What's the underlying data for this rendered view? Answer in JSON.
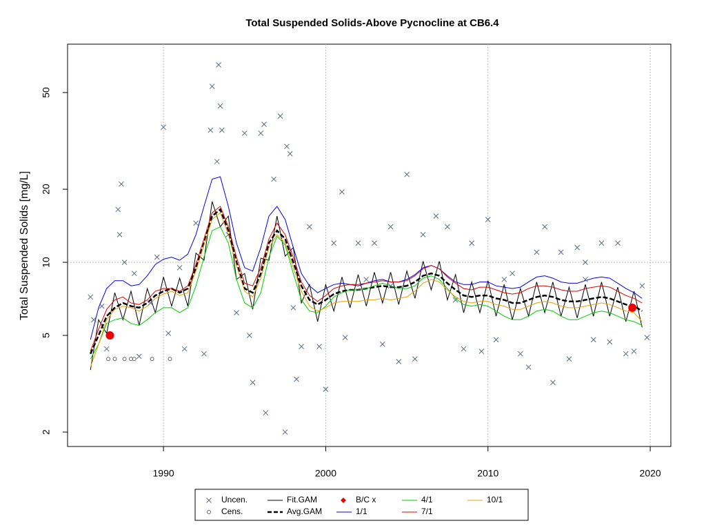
{
  "chart_data": {
    "type": "line",
    "title": "Total Suspended Solids-Above Pycnocline at CB6.4",
    "y_label": "Total Suspended Solids [mg/L]",
    "xlim": [
      1984.09,
      2021.27
    ],
    "xticks": [
      1990,
      2000,
      2010,
      2020
    ],
    "ylim": [
      1.744,
      79.1
    ],
    "yticks": [
      2,
      5,
      10,
      20,
      50
    ],
    "log_y": true,
    "grid": true,
    "hline": 10,
    "x": [
      1985.5,
      1986,
      1986.5,
      1987,
      1987.5,
      1988,
      1988.5,
      1989,
      1989.5,
      1990,
      1990.5,
      1991,
      1991.5,
      1992,
      1992.5,
      1993,
      1993.5,
      1994,
      1994.5,
      1995,
      1995.5,
      1996,
      1996.5,
      1997,
      1997.5,
      1998,
      1998.5,
      1999,
      1999.5,
      2000,
      2000.5,
      2001,
      2001.5,
      2002,
      2002.5,
      2003,
      2003.5,
      2004,
      2004.5,
      2005,
      2005.5,
      2006,
      2006.5,
      2007,
      2007.5,
      2008,
      2008.5,
      2009,
      2009.5,
      2010,
      2010.5,
      2011,
      2011.5,
      2012,
      2012.5,
      2013,
      2013.5,
      2014,
      2014.5,
      2015,
      2015.5,
      2016,
      2016.5,
      2017,
      2017.5,
      2018,
      2018.5,
      2019,
      2019.5
    ],
    "series": [
      {
        "name": "Uncen.",
        "kind": "scatter",
        "marker": "x",
        "color": "#5a6a80",
        "x": [
          1985.5,
          1985.7,
          1986.2,
          1986.5,
          1987.2,
          1987.4,
          1987.3,
          1987.6,
          1988.2,
          1988.5,
          1989.2,
          1989.6,
          1990,
          1990.3,
          1991,
          1991.3,
          1992,
          1992.5,
          1992.9,
          1993,
          1993.3,
          1993.4,
          1993.5,
          1993.6,
          1994,
          1994.5,
          1995,
          1995.3,
          1995.5,
          1996,
          1996.2,
          1996.3,
          1996.8,
          1997.2,
          1997.5,
          1997.6,
          1997.8,
          1998,
          1998.2,
          1998.5,
          1999,
          1999.6,
          2000,
          2000.5,
          2001,
          2001.2,
          2002,
          2003,
          2003.5,
          2004,
          2004.5,
          2005,
          2005.5,
          2006,
          2006.8,
          2007.5,
          2008.5,
          2009,
          2009.6,
          2010,
          2010.5,
          2011,
          2012,
          2012.5,
          2013,
          2013.5,
          2014,
          2014.5,
          2015,
          2015.5,
          2016,
          2016.5,
          2017,
          2017.5,
          2018,
          2018.5,
          2019,
          2019.5,
          2019.8,
          2002.5,
          2008,
          2011.5,
          2016,
          2004
        ],
        "values": [
          7.2,
          5.8,
          6.6,
          4.4,
          16.5,
          21,
          13,
          10,
          9,
          4.1,
          6.8,
          10.5,
          36,
          5.1,
          9.5,
          4.4,
          14.5,
          4.2,
          35,
          53,
          26,
          65,
          44,
          35,
          13,
          6.2,
          34,
          5,
          3.2,
          34,
          37,
          2.4,
          22,
          40,
          2.0,
          30,
          28,
          6.5,
          3.3,
          4.5,
          14,
          4.5,
          3.0,
          12,
          19.5,
          4.9,
          12,
          12,
          4.6,
          14,
          3.9,
          23,
          4,
          13,
          15.5,
          14,
          4.4,
          12,
          4.3,
          15,
          4.8,
          8.5,
          4.2,
          3.7,
          11,
          14,
          3.2,
          11,
          4,
          11.5,
          10,
          4.8,
          12,
          4.7,
          12,
          4.2,
          4.3,
          8,
          4.9,
          8.5,
          7,
          9,
          8.5,
          8
        ]
      },
      {
        "name": "Cens.",
        "kind": "scatter",
        "marker": "o",
        "color": "#666666",
        "x": [
          1986.6,
          1987,
          1987.6,
          1988,
          1988.2,
          1989.3,
          1990.4
        ],
        "values": [
          4,
          4,
          4,
          4,
          4,
          4,
          4
        ]
      },
      {
        "name": "Fit.GAM",
        "kind": "line",
        "color": "#000000",
        "width": 1,
        "values": [
          3.6,
          5.8,
          5.1,
          7.5,
          5.8,
          7.6,
          5.5,
          7.8,
          6.2,
          8.7,
          6.6,
          8.6,
          6.6,
          10.9,
          10.2,
          17.8,
          14,
          15.5,
          8.5,
          9,
          6.4,
          10.4,
          10.2,
          15.5,
          10.6,
          11.5,
          6.8,
          8.1,
          5.7,
          8.1,
          6.3,
          8.7,
          6.5,
          8.9,
          6.6,
          9.1,
          6.8,
          9.1,
          6.7,
          9.2,
          7.1,
          10.1,
          7.7,
          10.1,
          7.0,
          8.9,
          6.2,
          8.3,
          6.2,
          8.4,
          6.0,
          8.1,
          5.8,
          7.8,
          6.0,
          8.3,
          6.2,
          8.3,
          6.0,
          7.9,
          5.9,
          8.1,
          6.0,
          8.3,
          6.0,
          7.9,
          5.7,
          7.6,
          5.4
        ]
      },
      {
        "name": "Avg.GAM",
        "kind": "line",
        "color": "#000000",
        "width": 2.5,
        "dash": true,
        "values": [
          4.2,
          5.0,
          6.0,
          6.5,
          6.8,
          6.6,
          6.5,
          6.8,
          7.3,
          7.6,
          7.8,
          7.5,
          7.8,
          9.5,
          12,
          15.5,
          16.5,
          13.5,
          10,
          7.8,
          7.5,
          9,
          12,
          13.5,
          12.5,
          10,
          8,
          7,
          6.7,
          7,
          7.4,
          7.6,
          7.7,
          7.7,
          7.8,
          7.9,
          8,
          7.9,
          7.9,
          8.0,
          8.3,
          8.8,
          9.0,
          8.8,
          8.2,
          7.7,
          7.3,
          7.2,
          7.3,
          7.3,
          7.1,
          7.0,
          6.8,
          6.8,
          7.0,
          7.2,
          7.3,
          7.2,
          7.0,
          6.9,
          6.9,
          7.0,
          7.1,
          7.2,
          7.1,
          6.9,
          6.7,
          6.6,
          6.3
        ]
      },
      {
        "name": "B/C x",
        "kind": "scatter",
        "marker": "dot",
        "color": "#ee0000",
        "x": [
          1986.7,
          2018.9
        ],
        "values": [
          5.0,
          6.5
        ]
      },
      {
        "name": "1/1",
        "kind": "line",
        "color": "#0000ee",
        "width": 1,
        "values": [
          4.8,
          6.5,
          7.8,
          8.4,
          8.4,
          8.0,
          8.1,
          8.8,
          9.8,
          10.3,
          10.5,
          10.2,
          10.8,
          13,
          17,
          22,
          22.5,
          17,
          12,
          9.5,
          9.2,
          11.5,
          15.5,
          17,
          15,
          11.5,
          9,
          8,
          7.5,
          7.8,
          8.1,
          8.2,
          8.1,
          8.0,
          8.2,
          8.4,
          8.5,
          8.3,
          8.3,
          8.5,
          8.9,
          9.5,
          9.7,
          9.4,
          8.8,
          8.3,
          8.1,
          8.1,
          8.3,
          8.3,
          8.0,
          7.9,
          7.8,
          7.9,
          8.3,
          8.7,
          8.8,
          8.6,
          8.3,
          8.2,
          8.2,
          8.4,
          8.6,
          8.7,
          8.6,
          8.2,
          7.8,
          7.5,
          7.1
        ]
      },
      {
        "name": "4/1",
        "kind": "line",
        "color": "#00cc00",
        "width": 1,
        "values": [
          4.0,
          4.6,
          5.6,
          5.8,
          5.9,
          5.6,
          5.5,
          5.8,
          6.2,
          6.5,
          6.5,
          6.2,
          6.5,
          8,
          10.5,
          13.5,
          14,
          12,
          8.5,
          6.8,
          6.5,
          7.5,
          10.5,
          12.8,
          11.8,
          9,
          7,
          6.3,
          6.2,
          6.6,
          7.2,
          7.5,
          7.7,
          7.7,
          7.8,
          8.0,
          8.2,
          8.0,
          7.8,
          7.8,
          8.0,
          8.6,
          8.8,
          8.5,
          7.8,
          7.1,
          6.7,
          6.6,
          6.7,
          6.6,
          6.3,
          6.0,
          5.8,
          5.8,
          6.0,
          6.3,
          6.4,
          6.3,
          6.0,
          5.8,
          5.8,
          6.0,
          6.2,
          6.3,
          6.2,
          6.0,
          5.8,
          5.7,
          5.5
        ]
      },
      {
        "name": "7/1",
        "kind": "line",
        "color": "#dd0000",
        "width": 1,
        "values": [
          4.3,
          5.3,
          6.4,
          7.0,
          7.2,
          6.8,
          6.7,
          7.0,
          7.6,
          7.8,
          7.8,
          7.6,
          8.0,
          9.8,
          12.5,
          16,
          17,
          14,
          10.5,
          8.2,
          8.0,
          9.5,
          12.5,
          14.5,
          13,
          10.5,
          8.3,
          7.3,
          6.9,
          7.3,
          7.8,
          8.0,
          8.1,
          8.1,
          8.2,
          8.3,
          8.4,
          8.3,
          8.3,
          8.4,
          8.8,
          9.4,
          9.7,
          9.4,
          8.7,
          8.2,
          7.8,
          7.7,
          7.9,
          7.9,
          7.7,
          7.5,
          7.4,
          7.5,
          7.8,
          8.0,
          8.0,
          7.9,
          7.7,
          7.6,
          7.6,
          7.8,
          7.9,
          8.0,
          7.9,
          7.6,
          7.3,
          7.1,
          6.8
        ]
      },
      {
        "name": "10/1",
        "kind": "line",
        "color": "#e8a000",
        "width": 1,
        "values": [
          3.7,
          4.6,
          5.8,
          6.4,
          6.6,
          6.5,
          6.3,
          6.6,
          7.1,
          7.4,
          7.6,
          7.3,
          7.5,
          9.2,
          11.8,
          15,
          16,
          13,
          9.7,
          7.6,
          7.2,
          8.6,
          11.5,
          13,
          12,
          9.5,
          7.6,
          6.6,
          6.3,
          6.5,
          6.8,
          6.9,
          6.9,
          6.9,
          7.0,
          7.0,
          7.1,
          7.0,
          7.1,
          7.2,
          7.6,
          8.2,
          8.5,
          8.3,
          7.7,
          7.2,
          6.9,
          6.8,
          6.9,
          6.9,
          6.7,
          6.6,
          6.4,
          6.4,
          6.6,
          6.8,
          6.9,
          6.8,
          6.6,
          6.5,
          6.5,
          6.6,
          6.7,
          6.8,
          6.7,
          6.5,
          6.3,
          6.2,
          5.7
        ]
      }
    ]
  }
}
